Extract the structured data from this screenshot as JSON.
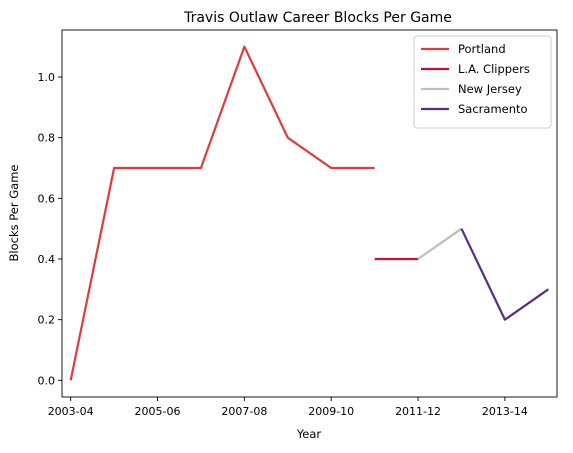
{
  "chart_data": {
    "type": "line",
    "title": "Travis Outlaw Career Blocks Per Game",
    "xlabel": "Year",
    "ylabel": "Blocks Per Game",
    "x_tick_labels": [
      "2003-04",
      "2005-06",
      "2007-08",
      "2009-10",
      "2011-12",
      "2013-14"
    ],
    "y_ticks": [
      "0.0",
      "0.2",
      "0.4",
      "0.6",
      "0.8",
      "1.0"
    ],
    "xlim": [
      2002.8,
      2014.2
    ],
    "ylim": [
      -0.055,
      1.155
    ],
    "grid": false,
    "legend_position": "top-right",
    "series": [
      {
        "name": "Portland",
        "color": "#e03a3e",
        "points": [
          [
            2003,
            0.0
          ],
          [
            2004,
            0.7
          ],
          [
            2005,
            0.7
          ],
          [
            2006,
            0.7
          ],
          [
            2007,
            1.1
          ],
          [
            2008,
            0.8
          ],
          [
            2009,
            0.7
          ],
          [
            2010,
            0.7
          ]
        ]
      },
      {
        "name": "L.A. Clippers",
        "color": "#c8102e",
        "points": [
          [
            2010,
            0.4
          ],
          [
            2011,
            0.4
          ]
        ]
      },
      {
        "name": "New Jersey",
        "color": "#bebebe",
        "points": [
          [
            2011,
            0.4
          ],
          [
            2012,
            0.5
          ]
        ]
      },
      {
        "name": "Sacramento",
        "color": "#5a2d81",
        "points": [
          [
            2012,
            0.5
          ],
          [
            2013,
            0.2
          ],
          [
            2014,
            0.3
          ]
        ]
      }
    ]
  }
}
